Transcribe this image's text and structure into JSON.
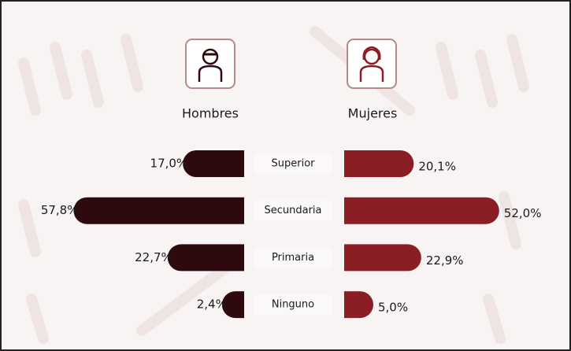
{
  "chart_data": {
    "type": "bar",
    "categories": [
      "Superior",
      "Secundaria",
      "Primaria",
      "Ninguno"
    ],
    "series": [
      {
        "name": "Hombres",
        "color": "#2e0a0e",
        "values": [
          17.0,
          57.8,
          22.7,
          2.4
        ],
        "value_labels": [
          "17,0%",
          "57,8%",
          "22,7%",
          "2,4%"
        ]
      },
      {
        "name": "Mujeres",
        "color": "#8b1e24",
        "values": [
          20.1,
          52.0,
          22.9,
          5.0
        ],
        "value_labels": [
          "20,1%",
          "52,0%",
          "22,9%",
          "5,0%"
        ]
      }
    ]
  }
}
